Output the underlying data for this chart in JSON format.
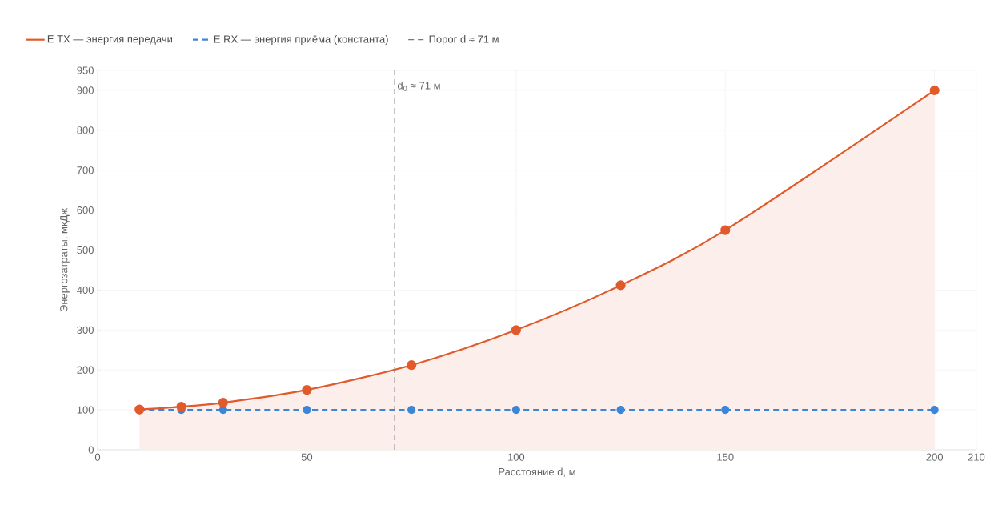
{
  "chart_data": {
    "type": "line",
    "xlabel": "Расстояние d, м",
    "ylabel": "Энергозатраты, мкДж",
    "x": [
      10,
      20,
      30,
      50,
      75,
      100,
      125,
      150,
      200
    ],
    "series": [
      {
        "name": "E TX — энергия передачи",
        "type": "area",
        "color": "#e05a2b",
        "line_style": "solid",
        "values": [
          101,
          108,
          118,
          150,
          212,
          300,
          412,
          550,
          900
        ]
      },
      {
        "name": "E RX — энергия приёма (константа)",
        "color": "#3d85d6",
        "line_style": "dashed",
        "values": [
          100,
          100,
          100,
          100,
          100,
          100,
          100,
          100,
          100
        ]
      }
    ],
    "ref_lines": [
      {
        "axis": "x",
        "value": 71,
        "label": "Порог d ≈ 71 м",
        "color": "#777777",
        "line_style": "dashed"
      }
    ],
    "annotations": [
      {
        "text": "d$_{0}$ ≈ 71 м",
        "x": 71,
        "y": 910
      }
    ],
    "xlim": [
      0,
      210
    ],
    "xticks": [
      0,
      50,
      100,
      150,
      200,
      210
    ],
    "ylim": [
      0,
      950
    ],
    "yticks": [
      0,
      100,
      200,
      300,
      400,
      500,
      600,
      700,
      800,
      900,
      950
    ],
    "grid": true,
    "legend": "top",
    "marker": "circle"
  }
}
